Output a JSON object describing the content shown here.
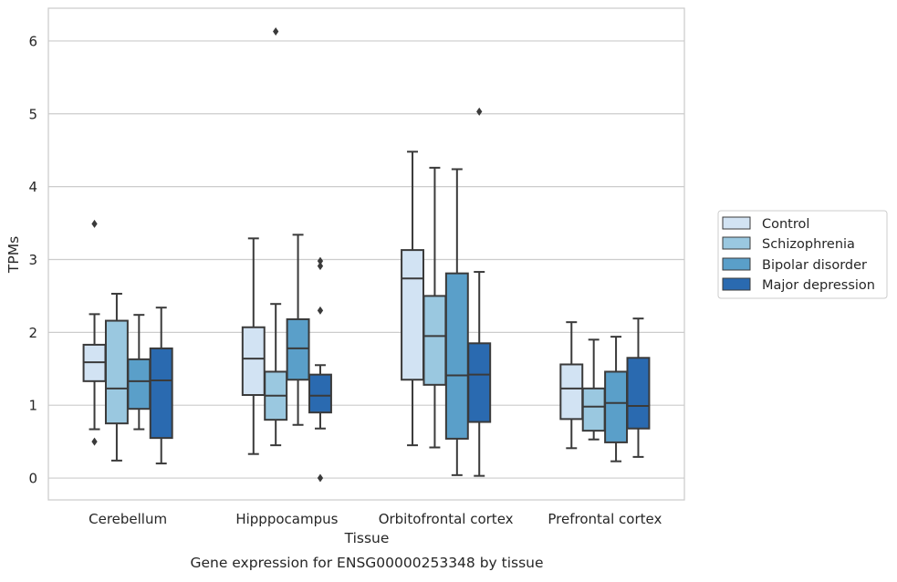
{
  "chart_data": {
    "type": "box",
    "title": "",
    "caption": "Gene expression for ENSG00000253348 by tissue",
    "xlabel": "Tissue",
    "ylabel": "TPMs",
    "ylim": [
      -0.3,
      6.45
    ],
    "yticks": [
      0,
      1,
      2,
      3,
      4,
      5,
      6
    ],
    "grid": "horizontal",
    "legend_position": "right",
    "categories": [
      "Cerebellum",
      "Hipppocampus",
      "Orbitofrontal cortex",
      "Prefrontal cortex"
    ],
    "series": [
      {
        "name": "Control",
        "color": "#d2e3f3",
        "boxes": [
          {
            "q1": 1.33,
            "median": 1.59,
            "q3": 1.83,
            "whisker_low": 0.67,
            "whisker_high": 2.25,
            "outliers": [
              0.5,
              3.49
            ]
          },
          {
            "q1": 1.14,
            "median": 1.64,
            "q3": 2.07,
            "whisker_low": 0.33,
            "whisker_high": 3.29,
            "outliers": []
          },
          {
            "q1": 1.35,
            "median": 2.74,
            "q3": 3.13,
            "whisker_low": 0.45,
            "whisker_high": 4.48,
            "outliers": []
          },
          {
            "q1": 0.81,
            "median": 1.23,
            "q3": 1.56,
            "whisker_low": 0.41,
            "whisker_high": 2.14,
            "outliers": []
          }
        ]
      },
      {
        "name": "Schizophrenia",
        "color": "#9ac8e0",
        "boxes": [
          {
            "q1": 0.75,
            "median": 1.23,
            "q3": 2.16,
            "whisker_low": 0.24,
            "whisker_high": 2.53,
            "outliers": []
          },
          {
            "q1": 0.8,
            "median": 1.13,
            "q3": 1.46,
            "whisker_low": 0.45,
            "whisker_high": 2.39,
            "outliers": [
              6.13
            ]
          },
          {
            "q1": 1.28,
            "median": 1.95,
            "q3": 2.5,
            "whisker_low": 0.42,
            "whisker_high": 4.26,
            "outliers": []
          },
          {
            "q1": 0.65,
            "median": 0.98,
            "q3": 1.23,
            "whisker_low": 0.53,
            "whisker_high": 1.9,
            "outliers": []
          }
        ]
      },
      {
        "name": "Bipolar disorder",
        "color": "#5a9fc9",
        "boxes": [
          {
            "q1": 0.95,
            "median": 1.33,
            "q3": 1.63,
            "whisker_low": 0.67,
            "whisker_high": 2.24,
            "outliers": []
          },
          {
            "q1": 1.35,
            "median": 1.78,
            "q3": 2.18,
            "whisker_low": 0.73,
            "whisker_high": 3.34,
            "outliers": []
          },
          {
            "q1": 0.54,
            "median": 1.41,
            "q3": 2.81,
            "whisker_low": 0.04,
            "whisker_high": 4.24,
            "outliers": []
          },
          {
            "q1": 0.49,
            "median": 1.03,
            "q3": 1.46,
            "whisker_low": 0.23,
            "whisker_high": 1.94,
            "outliers": []
          }
        ]
      },
      {
        "name": "Major depression",
        "color": "#2a6ab0",
        "boxes": [
          {
            "q1": 0.55,
            "median": 1.34,
            "q3": 1.78,
            "whisker_low": 0.2,
            "whisker_high": 2.34,
            "outliers": []
          },
          {
            "q1": 0.9,
            "median": 1.13,
            "q3": 1.42,
            "whisker_low": 0.68,
            "whisker_high": 1.55,
            "outliers": [
              0.0,
              2.3,
              2.91,
              2.98
            ]
          },
          {
            "q1": 0.77,
            "median": 1.42,
            "q3": 1.85,
            "whisker_low": 0.03,
            "whisker_high": 2.83,
            "outliers": [
              5.03
            ]
          },
          {
            "q1": 0.68,
            "median": 0.99,
            "q3": 1.65,
            "whisker_low": 0.29,
            "whisker_high": 2.19,
            "outliers": []
          }
        ]
      }
    ]
  }
}
